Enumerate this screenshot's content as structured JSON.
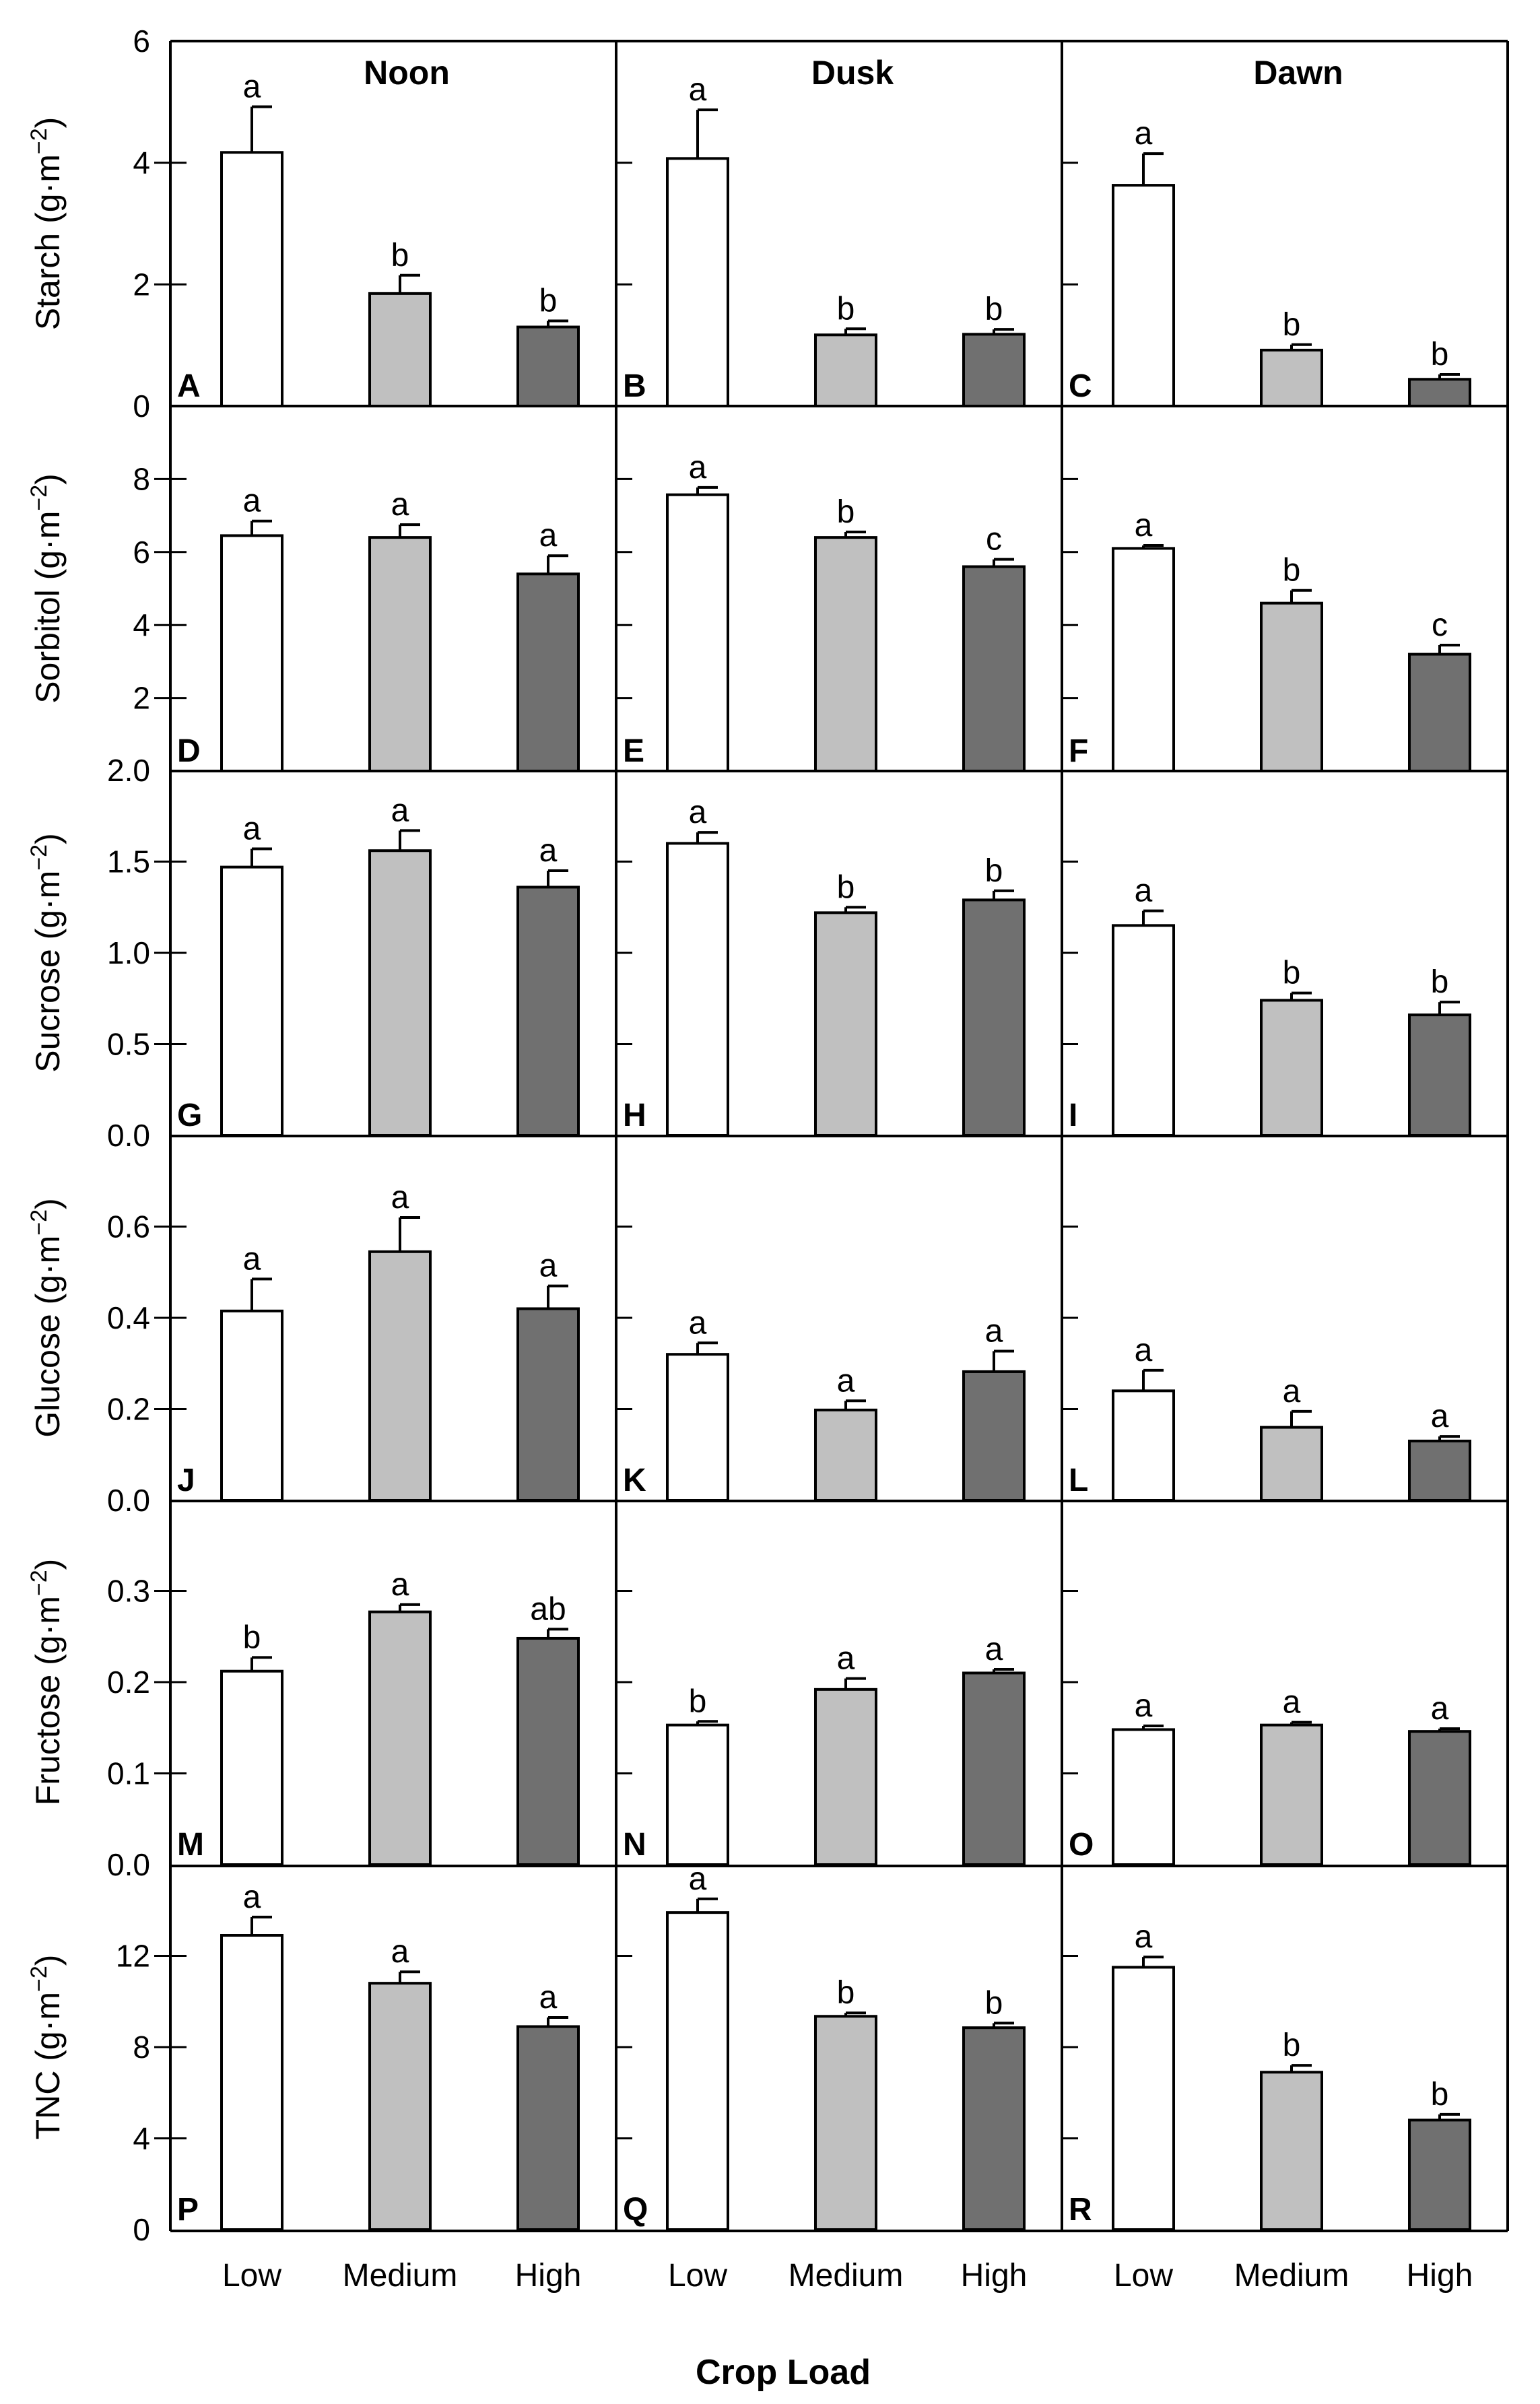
{
  "chart_data": {
    "type": "bar",
    "x_title": "Crop Load",
    "categories": [
      "Low",
      "Medium",
      "High"
    ],
    "bar_colors": [
      "#ffffff",
      "#c0c0c0",
      "#707070"
    ],
    "columns": [
      "Noon",
      "Dusk",
      "Dawn"
    ],
    "rows": [
      {
        "name": "Starch",
        "ylabel_main": "Starch (g·m",
        "ylabel_exp": "−2",
        "ylabel_close": ")",
        "ylim": [
          0,
          6
        ],
        "ticks": [
          0,
          2,
          4,
          6
        ],
        "tick_labels": [
          "0",
          "2",
          "4",
          "6"
        ],
        "panels": [
          {
            "label": "A",
            "time": "Noon",
            "values": [
              4.17,
              1.85,
              1.3
            ],
            "errors": [
              0.75,
              0.3,
              0.1
            ],
            "letters": [
              "a",
              "b",
              "b"
            ]
          },
          {
            "label": "B",
            "time": "Dusk",
            "values": [
              4.07,
              1.17,
              1.18
            ],
            "errors": [
              0.8,
              0.1,
              0.08
            ],
            "letters": [
              "a",
              "b",
              "b"
            ]
          },
          {
            "label": "C",
            "time": "Dawn",
            "values": [
              3.63,
              0.92,
              0.44
            ],
            "errors": [
              0.52,
              0.09,
              0.08
            ],
            "letters": [
              "a",
              "b",
              "b"
            ]
          }
        ]
      },
      {
        "name": "Sorbitol",
        "ylabel_main": "Sorbitol (g·m",
        "ylabel_exp": "−2",
        "ylabel_close": ")",
        "ylim": [
          0,
          10
        ],
        "ticks": [
          2,
          4,
          6,
          8
        ],
        "tick_labels": [
          "2",
          "4",
          "6",
          "8"
        ],
        "panels": [
          {
            "label": "D",
            "time": "Noon",
            "values": [
              6.45,
              6.4,
              5.4
            ],
            "errors": [
              0.4,
              0.35,
              0.5
            ],
            "letters": [
              "a",
              "a",
              "a"
            ]
          },
          {
            "label": "E",
            "time": "Dusk",
            "values": [
              7.57,
              6.4,
              5.6
            ],
            "errors": [
              0.2,
              0.15,
              0.2
            ],
            "letters": [
              "a",
              "b",
              "c"
            ]
          },
          {
            "label": "F",
            "time": "Dawn",
            "values": [
              6.1,
              4.6,
              3.2
            ],
            "errors": [
              0.08,
              0.35,
              0.25
            ],
            "letters": [
              "a",
              "b",
              "c"
            ]
          }
        ]
      },
      {
        "name": "Sucrose",
        "ylabel_main": "Sucrose (g·m",
        "ylabel_exp": "−2",
        "ylabel_close": ")",
        "ylim": [
          0,
          2.0
        ],
        "ticks": [
          0,
          0.5,
          1.0,
          1.5,
          2.0
        ],
        "tick_labels": [
          "0.0",
          "0.5",
          "1.0",
          "1.5",
          "2.0"
        ],
        "panels": [
          {
            "label": "G",
            "time": "Noon",
            "values": [
              1.47,
              1.56,
              1.36
            ],
            "errors": [
              0.1,
              0.11,
              0.09
            ],
            "letters": [
              "a",
              "a",
              "a"
            ]
          },
          {
            "label": "H",
            "time": "Dusk",
            "values": [
              1.6,
              1.22,
              1.29
            ],
            "errors": [
              0.06,
              0.03,
              0.05
            ],
            "letters": [
              "a",
              "b",
              "b"
            ]
          },
          {
            "label": "I",
            "time": "Dawn",
            "values": [
              1.15,
              0.74,
              0.66
            ],
            "errors": [
              0.08,
              0.04,
              0.07
            ],
            "letters": [
              "a",
              "b",
              "b"
            ]
          }
        ]
      },
      {
        "name": "Glucose",
        "ylabel_main": "Glucose (g·m",
        "ylabel_exp": "−2",
        "ylabel_close": ")",
        "ylim": [
          0,
          0.8
        ],
        "ticks": [
          0,
          0.2,
          0.4,
          0.6
        ],
        "tick_labels": [
          "0.0",
          "0.2",
          "0.4",
          "0.6"
        ],
        "panels": [
          {
            "label": "J",
            "time": "Noon",
            "values": [
              0.415,
              0.545,
              0.42
            ],
            "errors": [
              0.07,
              0.075,
              0.05
            ],
            "letters": [
              "a",
              "a",
              "a"
            ]
          },
          {
            "label": "K",
            "time": "Dusk",
            "values": [
              0.32,
              0.198,
              0.282
            ],
            "errors": [
              0.025,
              0.02,
              0.045
            ],
            "letters": [
              "a",
              "a",
              "a"
            ]
          },
          {
            "label": "L",
            "time": "Dawn",
            "values": [
              0.24,
              0.16,
              0.13
            ],
            "errors": [
              0.045,
              0.035,
              0.01
            ],
            "letters": [
              "a",
              "a",
              "a"
            ]
          }
        ]
      },
      {
        "name": "Fructose",
        "ylabel_main": "Fructose (g·m",
        "ylabel_exp": "−2",
        "ylabel_close": ")",
        "ylim": [
          0,
          0.4
        ],
        "ticks": [
          0,
          0.1,
          0.2,
          0.3
        ],
        "tick_labels": [
          "0.0",
          "0.1",
          "0.2",
          "0.3"
        ],
        "panels": [
          {
            "label": "M",
            "time": "Noon",
            "values": [
              0.212,
              0.277,
              0.248
            ],
            "errors": [
              0.015,
              0.008,
              0.01
            ],
            "letters": [
              "b",
              "a",
              "ab"
            ]
          },
          {
            "label": "N",
            "time": "Dusk",
            "values": [
              0.153,
              0.192,
              0.21
            ],
            "errors": [
              0.004,
              0.012,
              0.004
            ],
            "letters": [
              "b",
              "a",
              "a"
            ]
          },
          {
            "label": "O",
            "time": "Dawn",
            "values": [
              0.148,
              0.153,
              0.146
            ],
            "errors": [
              0.004,
              0.003,
              0.003
            ],
            "letters": [
              "a",
              "a",
              "a"
            ]
          }
        ]
      },
      {
        "name": "TNC",
        "ylabel_main": "TNC (g·m",
        "ylabel_exp": "−2",
        "ylabel_close": ")",
        "ylim": [
          0,
          16
        ],
        "ticks": [
          0,
          4,
          8,
          12
        ],
        "tick_labels": [
          "0",
          "4",
          "8",
          "12"
        ],
        "panels": [
          {
            "label": "P",
            "time": "Noon",
            "values": [
              12.9,
              10.8,
              8.9
            ],
            "errors": [
              0.8,
              0.5,
              0.4
            ],
            "letters": [
              "a",
              "a",
              "a"
            ]
          },
          {
            "label": "Q",
            "time": "Dusk",
            "values": [
              13.9,
              9.35,
              8.85
            ],
            "errors": [
              0.6,
              0.15,
              0.2
            ],
            "letters": [
              "a",
              "b",
              "b"
            ]
          },
          {
            "label": "R",
            "time": "Dawn",
            "values": [
              11.5,
              6.9,
              4.8
            ],
            "errors": [
              0.45,
              0.3,
              0.25
            ],
            "letters": [
              "a",
              "b",
              "b"
            ]
          }
        ]
      }
    ]
  }
}
